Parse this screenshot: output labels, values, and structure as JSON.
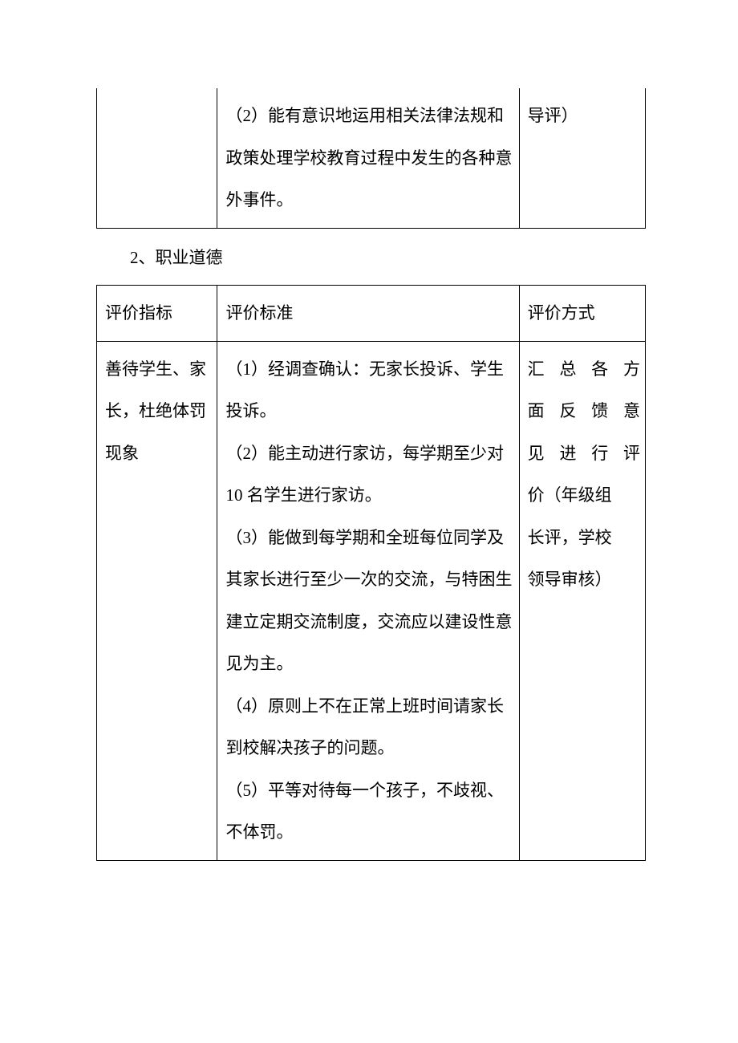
{
  "fragment_table": {
    "col1": "",
    "col2_p1": "（2）能有意识地运用相关法律法规和政策处理学校教育过程中发生的各种意外事件。",
    "col3": "导评）"
  },
  "section_heading": "2、职业道德",
  "table2": {
    "headers": {
      "c1": "评价指标",
      "c2": "评价标准",
      "c3": "评价方式"
    },
    "row": {
      "c1": "善待学生、家长，杜绝体罚现象",
      "c2_p1": "（1）经调查确认：无家长投诉、学生投诉。",
      "c2_p2": "（2）能主动进行家访，每学期至少对 10 名学生进行家访。",
      "c2_p3": "（3）能做到每学期和全班每位同学及其家长进行至少一次的交流，与特困生建立定期交流制度，交流应以建设性意见为主。",
      "c2_p4": "（4）原则上不在正常上班时间请家长到校解决孩子的问题。",
      "c2_p5": "（5）平等对待每一个孩子，不歧视、不体罚。",
      "c3_line1": "汇总各方",
      "c3_line2": "面反馈意",
      "c3_line3": "见进行评",
      "c3_line4": "价（年级组",
      "c3_line5": "长评，学校",
      "c3_line6": "领导审核）"
    }
  },
  "colors": {
    "text": "#000000",
    "border": "#000000",
    "background": "#ffffff"
  },
  "typography": {
    "font_family": "SimSun",
    "font_size_pt": 16,
    "line_height": 2.5
  }
}
